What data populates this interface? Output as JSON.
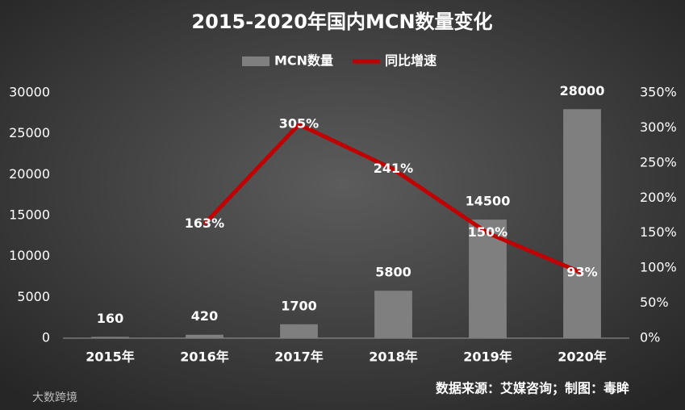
{
  "chart_data": {
    "type": "bar",
    "title": "2015-2020年国内MCN数量变化",
    "categories": [
      "2015年",
      "2016年",
      "2017年",
      "2018年",
      "2019年",
      "2020年"
    ],
    "series": [
      {
        "name": "MCN数量",
        "type": "bar",
        "color": "#7f7f7f",
        "values": [
          160,
          420,
          1700,
          5800,
          14500,
          28000
        ]
      },
      {
        "name": "同比增速",
        "type": "line",
        "axis": "y2",
        "color": "#c00000",
        "values": [
          null,
          163,
          305,
          241,
          150,
          93
        ],
        "value_labels": [
          null,
          "163%",
          "305%",
          "241%",
          "150%",
          "93%"
        ]
      }
    ],
    "ylim": [
      0,
      30000
    ],
    "yticks": [
      0,
      5000,
      10000,
      15000,
      20000,
      25000,
      30000
    ],
    "y2lim": [
      0,
      350
    ],
    "y2ticks": [
      {
        "value": 0,
        "label": "0%"
      },
      {
        "value": 50,
        "label": "50%"
      },
      {
        "value": 100,
        "label": "100%"
      },
      {
        "value": 150,
        "label": "150%"
      },
      {
        "value": 200,
        "label": "200%"
      },
      {
        "value": 250,
        "label": "250%"
      },
      {
        "value": 300,
        "label": "300%"
      },
      {
        "value": 350,
        "label": "350%"
      }
    ],
    "grid": false,
    "legend": "top",
    "source": "数据来源：艾媒咨询；制图：毒眸",
    "watermark": "大数跨境"
  }
}
